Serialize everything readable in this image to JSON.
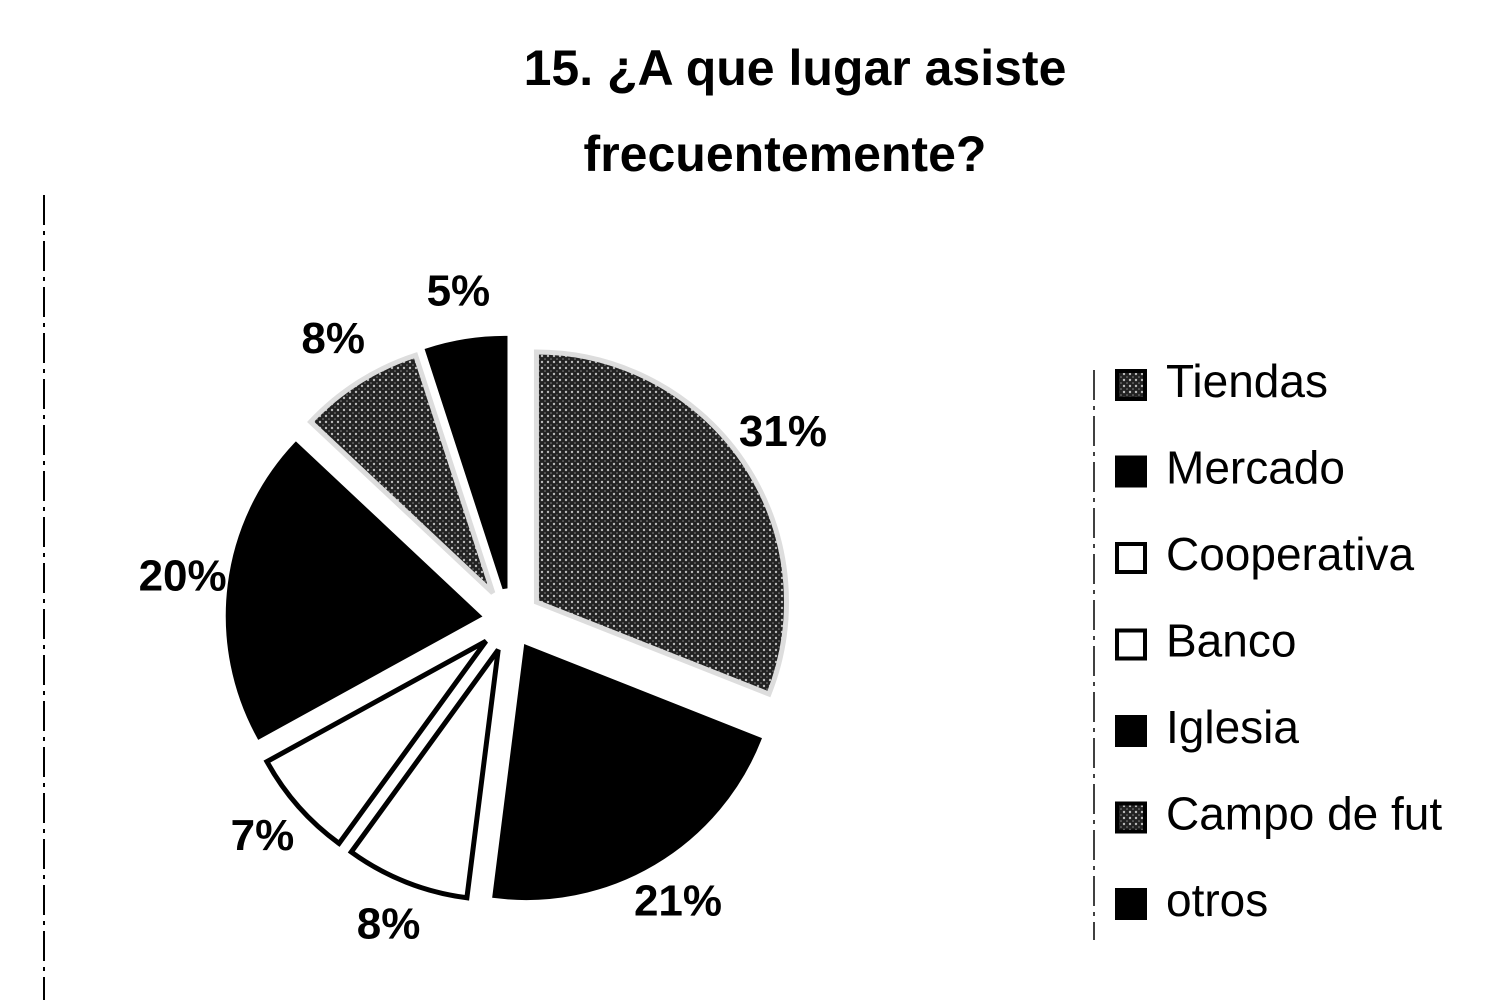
{
  "chart_data": {
    "type": "pie",
    "title": "15. ¿A que lugar asiste",
    "subtitle": "frecuentemente?",
    "categories": [
      "Tiendas",
      "Mercado",
      "Cooperativa",
      "Banco",
      "Iglesia",
      "Campo de fut",
      "otros"
    ],
    "values": [
      31,
      21,
      8,
      7,
      20,
      8,
      5
    ],
    "value_labels": [
      "31%",
      "21%",
      "8%",
      "7%",
      "20%",
      "8%",
      "5%"
    ],
    "colors": [
      "#4a4a4a",
      "#000000",
      "#ffffff",
      "#ffffff",
      "#000000",
      "#4a4a4a",
      "#000000"
    ],
    "legend": "right"
  }
}
